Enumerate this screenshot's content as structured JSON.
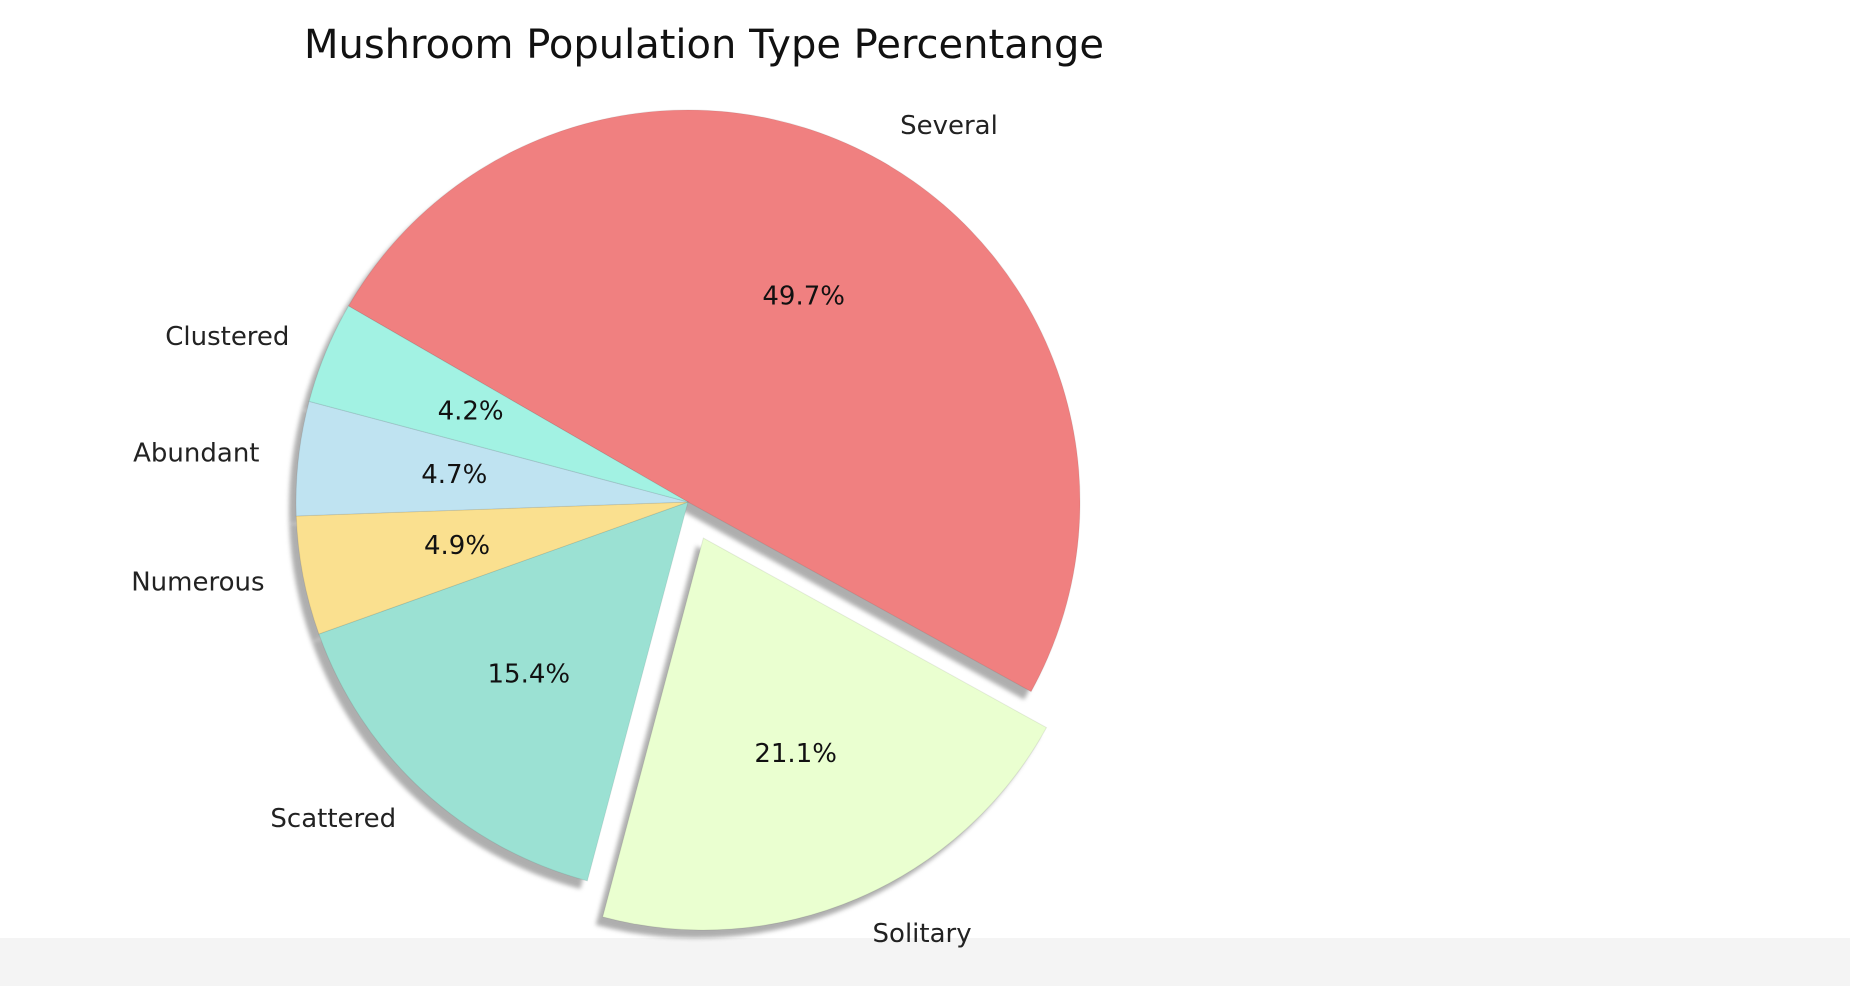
{
  "chart_data": {
    "type": "pie",
    "title": "Mushroom Population Type Percentange",
    "start_angle_deg": 150,
    "direction": "clockwise",
    "shadow": true,
    "slices": [
      {
        "label": "Several",
        "value": 49.7,
        "pct_label": "49.7%",
        "color": "#F08080",
        "explode": false
      },
      {
        "label": "Solitary",
        "value": 21.1,
        "pct_label": "21.1%",
        "color": "#EAFFD0",
        "explode": true
      },
      {
        "label": "Scattered",
        "value": 15.4,
        "pct_label": "15.4%",
        "color": "#9BE1D3",
        "explode": false
      },
      {
        "label": "Numerous",
        "value": 4.9,
        "pct_label": "4.9%",
        "color": "#FAE08F",
        "explode": false
      },
      {
        "label": "Abundant",
        "value": 4.7,
        "pct_label": "4.7%",
        "color": "#BFE3F1",
        "explode": false
      },
      {
        "label": "Clustered",
        "value": 4.2,
        "pct_label": "4.2%",
        "color": "#A2F2E3",
        "explode": false
      }
    ]
  }
}
